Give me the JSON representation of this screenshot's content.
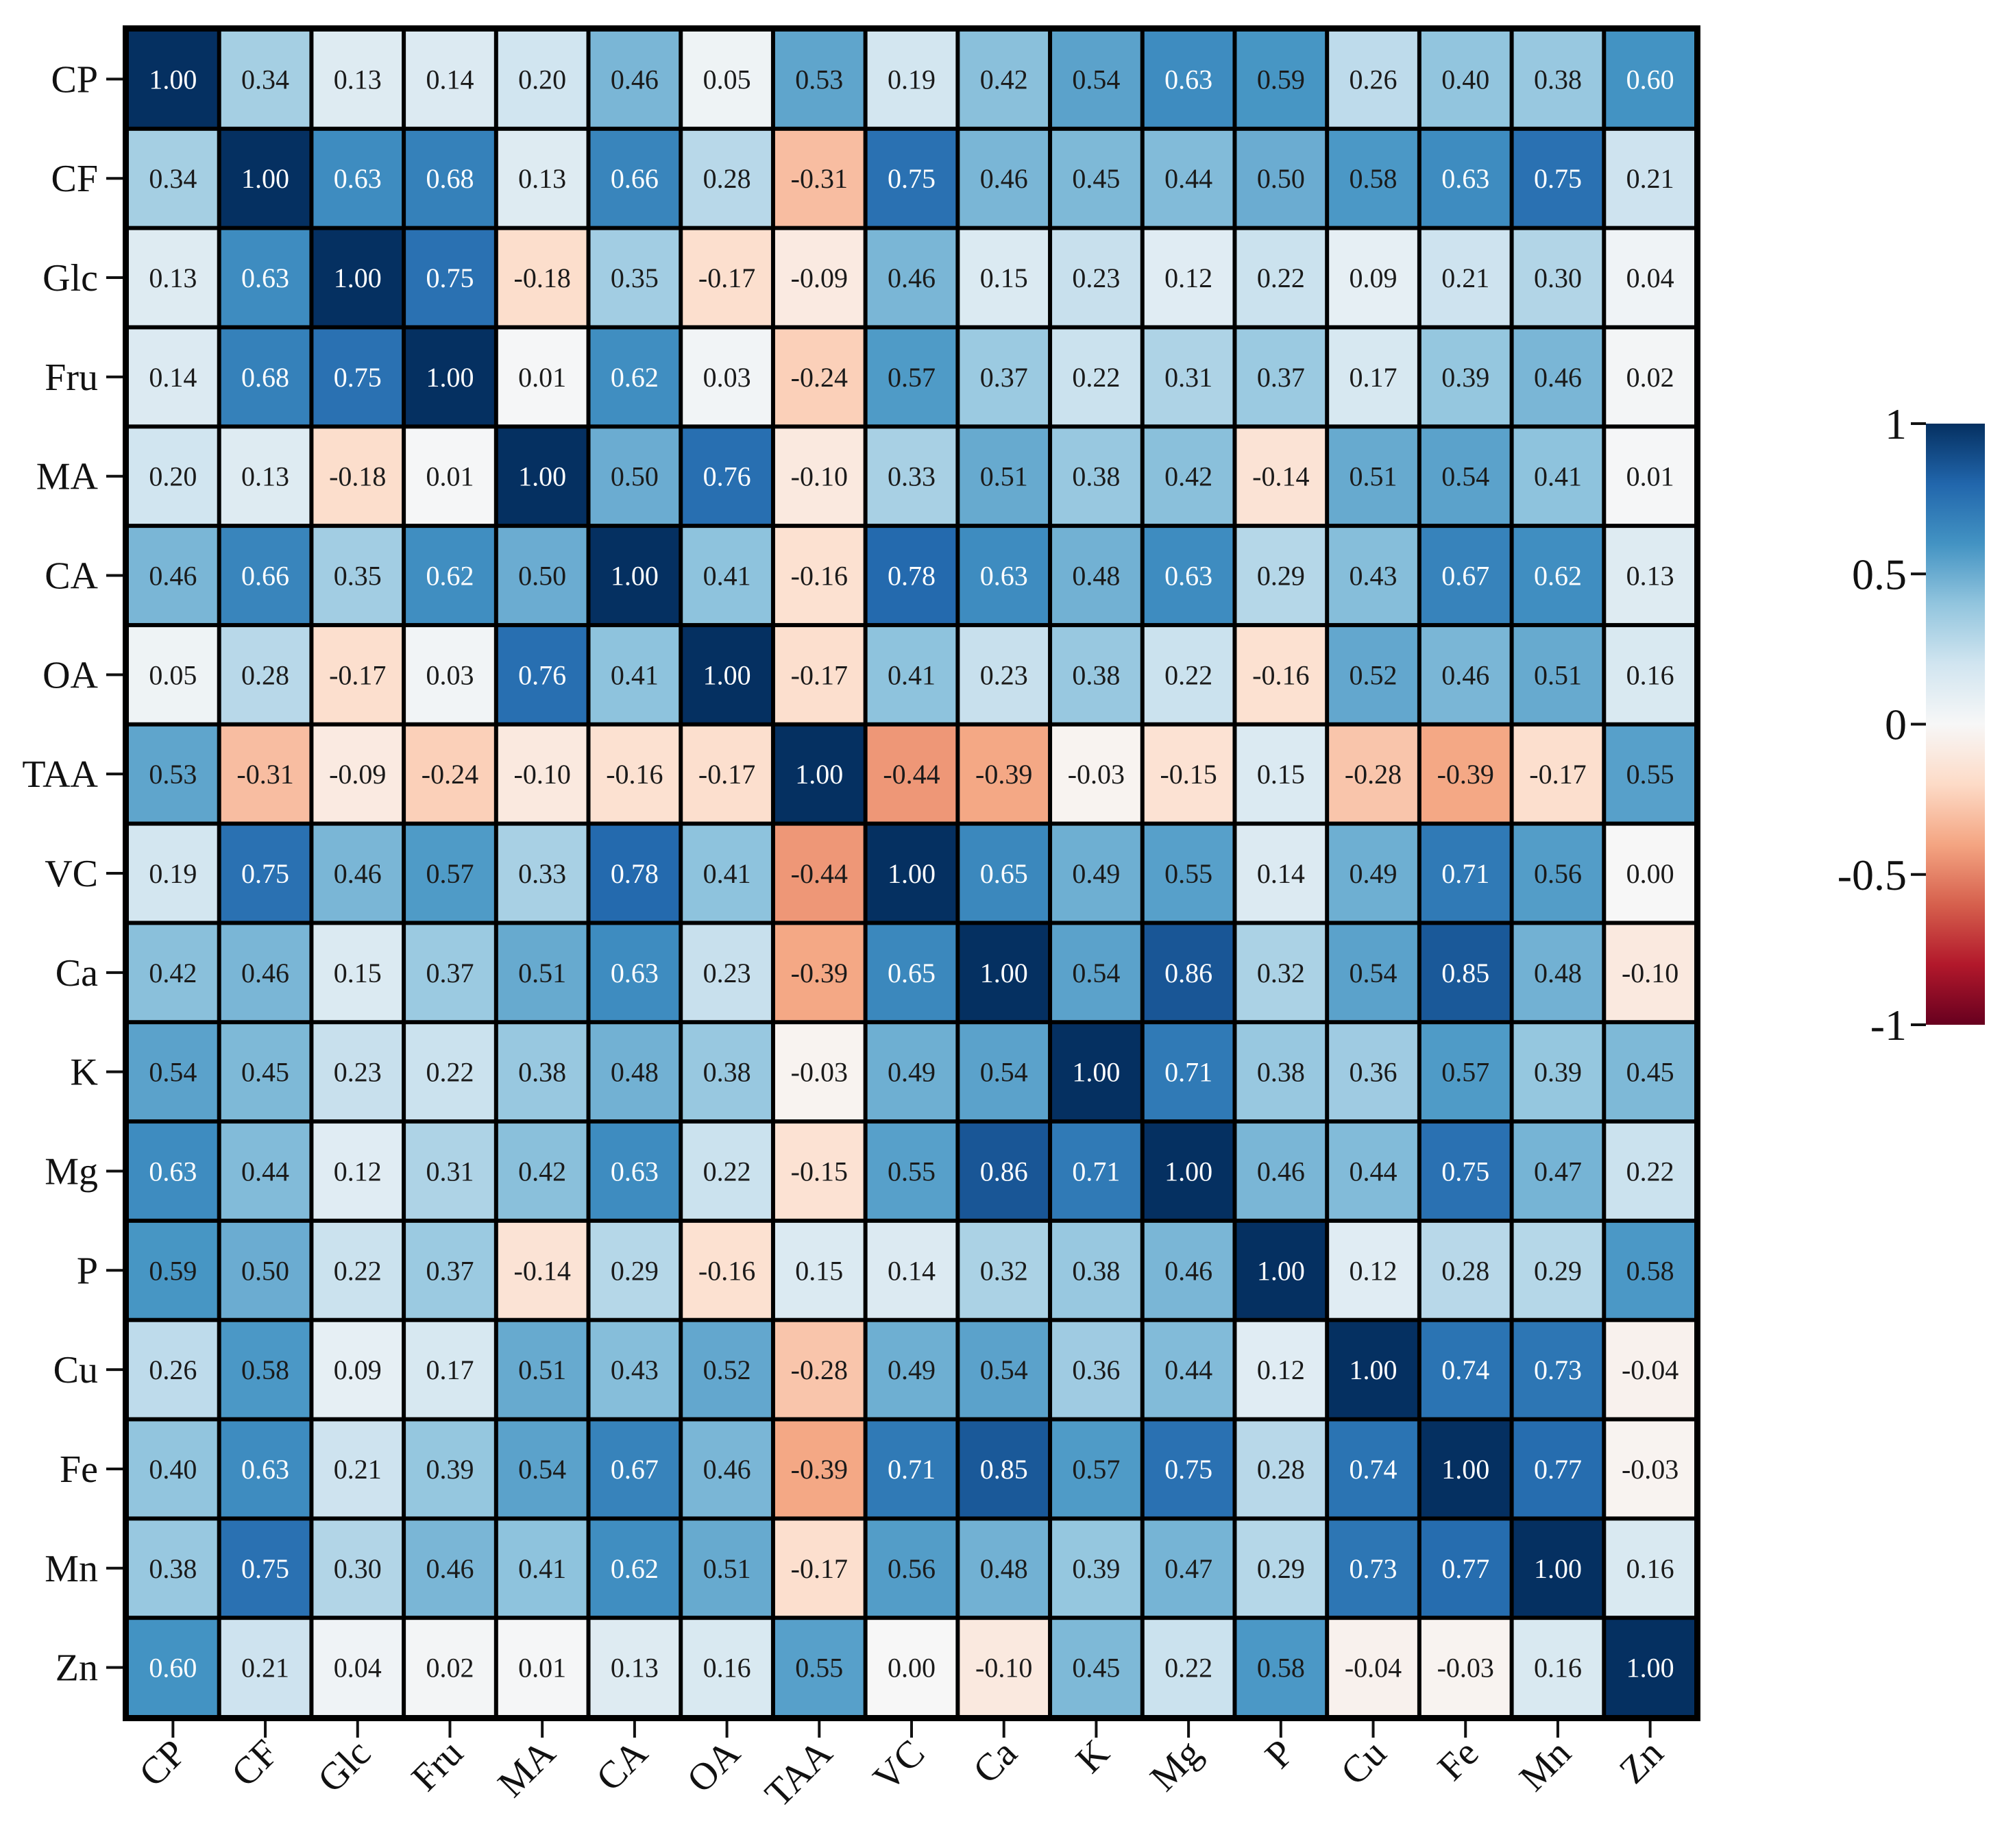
{
  "chart_data": {
    "type": "heatmap",
    "title": "",
    "xlabel": "",
    "ylabel": "",
    "labels": [
      "CP",
      "CF",
      "Glc",
      "Fru",
      "MA",
      "CA",
      "OA",
      "TAA",
      "VC",
      "Ca",
      "K",
      "Mg",
      "P",
      "Cu",
      "Fe",
      "Mn",
      "Zn"
    ],
    "value_labels": [
      [
        "1.00",
        "0.34",
        "0.13",
        "0.14",
        "0.20",
        "0.46",
        "0.05",
        "0.53",
        "0.19",
        "0.42",
        "0.54",
        "0.63",
        "0.59",
        "0.26",
        "0.40",
        "0.38",
        "0.60"
      ],
      [
        "0.34",
        "1.00",
        "0.63",
        "0.68",
        "0.13",
        "0.66",
        "0.28",
        "-0.31",
        "0.75",
        "0.46",
        "0.45",
        "0.44",
        "0.50",
        "0.58",
        "0.63",
        "0.75",
        "0.21"
      ],
      [
        "0.13",
        "0.63",
        "1.00",
        "0.75",
        "-0.18",
        "0.35",
        "-0.17",
        "-0.09",
        "0.46",
        "0.15",
        "0.23",
        "0.12",
        "0.22",
        "0.09",
        "0.21",
        "0.30",
        "0.04"
      ],
      [
        "0.14",
        "0.68",
        "0.75",
        "1.00",
        "0.01",
        "0.62",
        "0.03",
        "-0.24",
        "0.57",
        "0.37",
        "0.22",
        "0.31",
        "0.37",
        "0.17",
        "0.39",
        "0.46",
        "0.02"
      ],
      [
        "0.20",
        "0.13",
        "-0.18",
        "0.01",
        "1.00",
        "0.50",
        "0.76",
        "-0.10",
        "0.33",
        "0.51",
        "0.38",
        "0.42",
        "-0.14",
        "0.51",
        "0.54",
        "0.41",
        "0.01"
      ],
      [
        "0.46",
        "0.66",
        "0.35",
        "0.62",
        "0.50",
        "1.00",
        "0.41",
        "-0.16",
        "0.78",
        "0.63",
        "0.48",
        "0.63",
        "0.29",
        "0.43",
        "0.67",
        "0.62",
        "0.13"
      ],
      [
        "0.05",
        "0.28",
        "-0.17",
        "0.03",
        "0.76",
        "0.41",
        "1.00",
        "-0.17",
        "0.41",
        "0.23",
        "0.38",
        "0.22",
        "-0.16",
        "0.52",
        "0.46",
        "0.51",
        "0.16"
      ],
      [
        "0.53",
        "-0.31",
        "-0.09",
        "-0.24",
        "-0.10",
        "-0.16",
        "-0.17",
        "1.00",
        "-0.44",
        "-0.39",
        "-0.03",
        "-0.15",
        "0.15",
        "-0.28",
        "-0.39",
        "-0.17",
        "0.55"
      ],
      [
        "0.19",
        "0.75",
        "0.46",
        "0.57",
        "0.33",
        "0.78",
        "0.41",
        "-0.44",
        "1.00",
        "0.65",
        "0.49",
        "0.55",
        "0.14",
        "0.49",
        "0.71",
        "0.56",
        "0.00"
      ],
      [
        "0.42",
        "0.46",
        "0.15",
        "0.37",
        "0.51",
        "0.63",
        "0.23",
        "-0.39",
        "0.65",
        "1.00",
        "0.54",
        "0.86",
        "0.32",
        "0.54",
        "0.85",
        "0.48",
        "-0.10"
      ],
      [
        "0.54",
        "0.45",
        "0.23",
        "0.22",
        "0.38",
        "0.48",
        "0.38",
        "-0.03",
        "0.49",
        "0.54",
        "1.00",
        "0.71",
        "0.38",
        "0.36",
        "0.57",
        "0.39",
        "0.45"
      ],
      [
        "0.63",
        "0.44",
        "0.12",
        "0.31",
        "0.42",
        "0.63",
        "0.22",
        "-0.15",
        "0.55",
        "0.86",
        "0.71",
        "1.00",
        "0.46",
        "0.44",
        "0.75",
        "0.47",
        "0.22"
      ],
      [
        "0.59",
        "0.50",
        "0.22",
        "0.37",
        "-0.14",
        "0.29",
        "-0.16",
        "0.15",
        "0.14",
        "0.32",
        "0.38",
        "0.46",
        "1.00",
        "0.12",
        "0.28",
        "0.29",
        "0.58"
      ],
      [
        "0.26",
        "0.58",
        "0.09",
        "0.17",
        "0.51",
        "0.43",
        "0.52",
        "-0.28",
        "0.49",
        "0.54",
        "0.36",
        "0.44",
        "0.12",
        "1.00",
        "0.74",
        "0.73",
        "-0.04"
      ],
      [
        "0.40",
        "0.63",
        "0.21",
        "0.39",
        "0.54",
        "0.67",
        "0.46",
        "-0.39",
        "0.71",
        "0.85",
        "0.57",
        "0.75",
        "0.28",
        "0.74",
        "1.00",
        "0.77",
        "-0.03"
      ],
      [
        "0.38",
        "0.75",
        "0.30",
        "0.46",
        "0.41",
        "0.62",
        "0.51",
        "-0.17",
        "0.56",
        "0.48",
        "0.39",
        "0.47",
        "0.29",
        "0.73",
        "0.77",
        "1.00",
        "0.16"
      ],
      [
        "0.60",
        "0.21",
        "0.04",
        "0.02",
        "0.01",
        "0.13",
        "0.16",
        "0.55",
        "0.00",
        "-0.10",
        "0.45",
        "0.22",
        "0.58",
        "-0.04",
        "-0.03",
        "0.16",
        "1.00"
      ]
    ],
    "colorbar": {
      "range": [
        -1,
        1
      ],
      "tick_values": [
        1,
        0.5,
        0,
        -0.5,
        -1
      ],
      "tick_labels": [
        "1",
        "0.5",
        "0",
        "-0.5",
        "-1"
      ],
      "colormap": "RdBu",
      "colors": [
        "#67001f",
        "#b2182b",
        "#d6604d",
        "#f4a582",
        "#fddbc7",
        "#f7f7f7",
        "#d1e5f0",
        "#92c5de",
        "#4393c3",
        "#2166ac",
        "#053061"
      ]
    },
    "grid": true,
    "text_color_light": "#ffffff",
    "text_color_dark": "#1a1a1a",
    "cell_border_color": "#000000"
  }
}
